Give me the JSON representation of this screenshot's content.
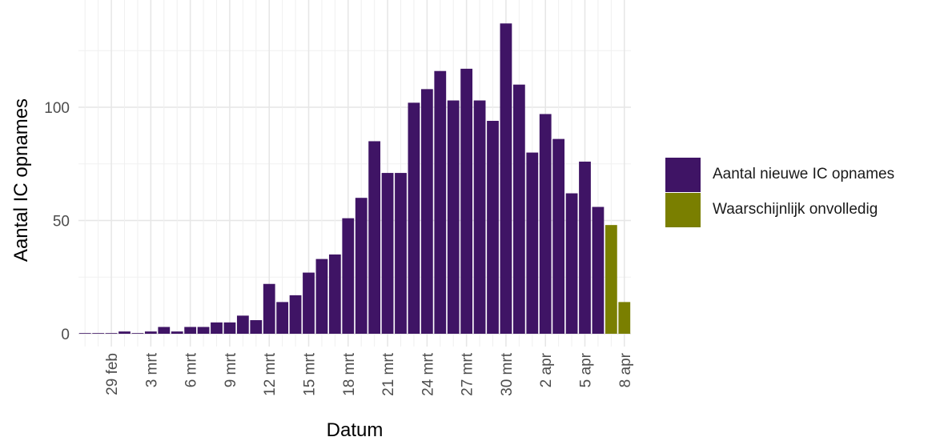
{
  "chart_data": {
    "type": "bar",
    "xlabel": "Datum",
    "ylabel": "Aantal IC opnames",
    "ylim": [
      0,
      141
    ],
    "yticks": [
      0,
      50,
      100
    ],
    "grid": true,
    "legend_position": "right",
    "x_tick_labels": [
      "29 feb",
      "3 mrt",
      "6 mrt",
      "9 mrt",
      "12 mrt",
      "15 mrt",
      "18 mrt",
      "21 mrt",
      "24 mrt",
      "27 mrt",
      "30 mrt",
      "2 apr",
      "5 apr",
      "8 apr"
    ],
    "categories": [
      "27 feb",
      "28 feb",
      "29 feb",
      "1 mrt",
      "2 mrt",
      "3 mrt",
      "4 mrt",
      "5 mrt",
      "6 mrt",
      "7 mrt",
      "8 mrt",
      "9 mrt",
      "10 mrt",
      "11 mrt",
      "12 mrt",
      "13 mrt",
      "14 mrt",
      "15 mrt",
      "16 mrt",
      "17 mrt",
      "18 mrt",
      "19 mrt",
      "20 mrt",
      "21 mrt",
      "22 mrt",
      "23 mrt",
      "24 mrt",
      "25 mrt",
      "26 mrt",
      "27 mrt",
      "28 mrt",
      "29 mrt",
      "30 mrt",
      "31 mrt",
      "1 apr",
      "2 apr",
      "3 apr",
      "4 apr",
      "5 apr",
      "6 apr",
      "7 apr",
      "8 apr"
    ],
    "series": [
      {
        "name": "Aantal nieuwe IC opnames",
        "color": "#3f1465",
        "values": [
          0,
          0,
          0,
          1,
          0,
          1,
          3,
          1,
          3,
          3,
          5,
          5,
          8,
          6,
          22,
          14,
          17,
          27,
          33,
          35,
          51,
          60,
          85,
          71,
          71,
          102,
          108,
          116,
          103,
          117,
          103,
          94,
          137,
          110,
          80,
          97,
          86,
          62,
          76,
          56,
          null,
          null
        ]
      },
      {
        "name": "Waarschijnlijk onvolledig",
        "color": "#7a7f00",
        "values": [
          null,
          null,
          null,
          null,
          null,
          null,
          null,
          null,
          null,
          null,
          null,
          null,
          null,
          null,
          null,
          null,
          null,
          null,
          null,
          null,
          null,
          null,
          null,
          null,
          null,
          null,
          null,
          null,
          null,
          null,
          null,
          null,
          null,
          null,
          null,
          null,
          null,
          null,
          null,
          null,
          48,
          14
        ]
      }
    ]
  }
}
